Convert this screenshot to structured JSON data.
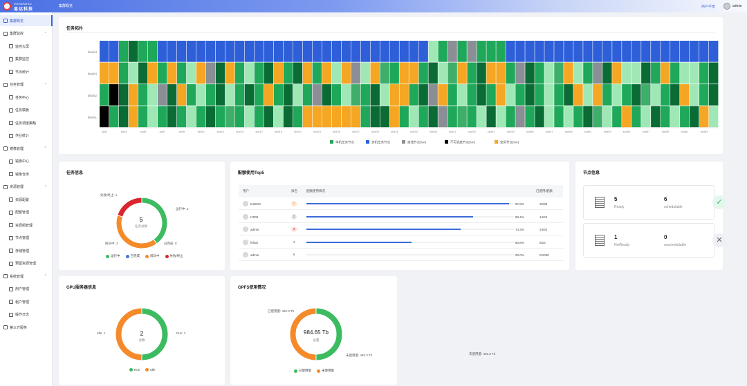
{
  "header": {
    "logo_en": "INTEGRATED",
    "logo_cn": "易达科技",
    "breadcrumb": "集群概览",
    "manual_link": "用户手册",
    "username": "admin"
  },
  "sidebar": {
    "items": [
      {
        "label": "集群概览",
        "type": "item",
        "active": true,
        "icon": "dashboard-icon"
      },
      {
        "label": "集群监控",
        "type": "group",
        "icon": "monitor-icon"
      },
      {
        "label": "监控大屏",
        "type": "sub",
        "icon": "screen-icon"
      },
      {
        "label": "集群监控",
        "type": "sub",
        "icon": "cluster-icon"
      },
      {
        "label": "节点统计",
        "type": "sub",
        "icon": "node-icon"
      },
      {
        "label": "任务管理",
        "type": "group",
        "icon": "task-icon"
      },
      {
        "label": "任务中心",
        "type": "sub",
        "icon": "task-center-icon"
      },
      {
        "label": "任务模板",
        "type": "sub",
        "icon": "template-icon"
      },
      {
        "label": "任务调度策略",
        "type": "sub",
        "icon": "schedule-icon"
      },
      {
        "label": "作业统计",
        "type": "sub",
        "icon": "stats-icon"
      },
      {
        "label": "镜像管理",
        "type": "group",
        "icon": "image-icon"
      },
      {
        "label": "镜像中心",
        "type": "sub",
        "icon": "image-center-icon"
      },
      {
        "label": "镜像仓库",
        "type": "sub",
        "icon": "repo-icon"
      },
      {
        "label": "资源管理",
        "type": "group",
        "icon": "resource-icon"
      },
      {
        "label": "资源配置",
        "type": "sub",
        "icon": "resource-config-icon"
      },
      {
        "label": "配额管理",
        "type": "sub",
        "icon": "quota-icon"
      },
      {
        "label": "资源组管理",
        "type": "sub",
        "icon": "group-icon"
      },
      {
        "label": "节点管理",
        "type": "sub",
        "icon": "node-manage-icon"
      },
      {
        "label": "存储管理",
        "type": "sub",
        "icon": "storage-icon"
      },
      {
        "label": "预留资源管理",
        "type": "sub",
        "icon": "reserve-icon"
      },
      {
        "label": "系统管理",
        "type": "group",
        "icon": "system-icon"
      },
      {
        "label": "用户管理",
        "type": "sub",
        "icon": "user-icon"
      },
      {
        "label": "租户管理",
        "type": "sub",
        "icon": "tenant-icon"
      },
      {
        "label": "操作日志",
        "type": "sub",
        "icon": "log-icon"
      },
      {
        "label": "第三方服务",
        "type": "item",
        "icon": "third-party-icon"
      }
    ]
  },
  "topology": {
    "title": "任务拓扑",
    "rows": [
      "block4",
      "block3",
      "block2",
      "block1"
    ],
    "x_labels": [
      "slot1",
      "slot3",
      "slot5",
      "slot7",
      "slot9",
      "slot11",
      "slot13",
      "slot15",
      "slot17",
      "slot19",
      "slot21",
      "slot23",
      "slot25",
      "slot27",
      "slot29",
      "slot31",
      "slot33",
      "slot35",
      "slot37",
      "slot39",
      "slot41",
      "slot43",
      "slot45",
      "slot47",
      "slot49",
      "slot51",
      "slot53",
      "slot55",
      "slot57",
      "slot59",
      "slot61",
      "slot63"
    ],
    "legend": [
      {
        "label": "单机任务节点",
        "color": "#21a45a"
      },
      {
        "label": "多机任务节点",
        "color": "#2e5fd9"
      },
      {
        "label": "离线节点(NA)",
        "color": "#8a8f96"
      },
      {
        "label": "不可调度节点(NA)",
        "color": "#000000"
      },
      {
        "label": "空闲节点(NA)",
        "color": "#f5a623"
      }
    ]
  },
  "task_info": {
    "title": "任务信息",
    "center_value": "5",
    "center_label": "任务总数",
    "labels": {
      "failed": "失败/终止: 1",
      "running": "运行中: 2",
      "queued": "排队中: 2",
      "pending": "已完成: 0"
    },
    "legend": [
      {
        "label": "运行中",
        "color": "#3dbb61"
      },
      {
        "label": "已完成",
        "color": "#3a7bd5"
      },
      {
        "label": "排队中",
        "color": "#f58a2a"
      },
      {
        "label": "失败/终止",
        "color": "#d9262f"
      }
    ],
    "chart_data": {
      "type": "pie",
      "categories": [
        "运行中",
        "已完成",
        "排队中",
        "失败/终止"
      ],
      "values": [
        2,
        0,
        2,
        1
      ]
    }
  },
  "quota_top5": {
    "title": "配额使用Top5",
    "columns": [
      "用户",
      "排名",
      "配额使用情况",
      "已使用/配额"
    ],
    "rows": [
      {
        "user": "test010",
        "rank": "1",
        "pct_value": 0.978,
        "pct": "97.8%",
        "count": "22/30"
      },
      {
        "user": "t1000",
        "rank": "2",
        "pct_value": 0.804,
        "pct": "80.4%",
        "count": "14/24"
      },
      {
        "user": "admin",
        "rank": "3",
        "pct_value": 0.743,
        "pct": "74.3%",
        "count": "24/32"
      },
      {
        "user": "felixix",
        "rank": "4",
        "pct_value": 0.508,
        "pct": "50.8%",
        "count": "8/24"
      },
      {
        "user": "admin",
        "rank": "5",
        "pct_value": 0.0,
        "pct": "00.0%",
        "count": "0/1000"
      }
    ]
  },
  "node_info": {
    "title": "节点信息",
    "ready": {
      "value": "5",
      "label": "Ready",
      "sched_value": "6",
      "sched_label": "schedulable"
    },
    "notready": {
      "value": "1",
      "label": "NotReady",
      "sched_value": "0",
      "sched_label": "unschedulable"
    }
  },
  "gpu_info": {
    "title": "GPU服务器信息",
    "center_value": "2",
    "center_label": "总数",
    "left_label": "Idle: 1",
    "right_label": "Run: 1",
    "legend": [
      {
        "label": "Run",
        "color": "#3dbb61"
      },
      {
        "label": "Idle",
        "color": "#f58a2a"
      }
    ],
    "chart_data": {
      "type": "pie",
      "categories": [
        "Run",
        "Idle"
      ],
      "values": [
        1,
        1
      ]
    }
  },
  "gpfs_info": {
    "title": "GPFS使用情况",
    "center_value": "984.65 Tb",
    "center_label": "总量",
    "used_label": "已使用量: 492.3 Tb",
    "free_label": "未使用量: 492.3 Tb",
    "side_note": "未使用量: 492.3 Tb",
    "legend": [
      {
        "label": "已使用量",
        "color": "#3dbb61"
      },
      {
        "label": "未使用量",
        "color": "#f58a2a"
      }
    ],
    "chart_data": {
      "type": "pie",
      "categories": [
        "已使用量",
        "未使用量"
      ],
      "values": [
        492.3,
        492.3
      ]
    }
  }
}
